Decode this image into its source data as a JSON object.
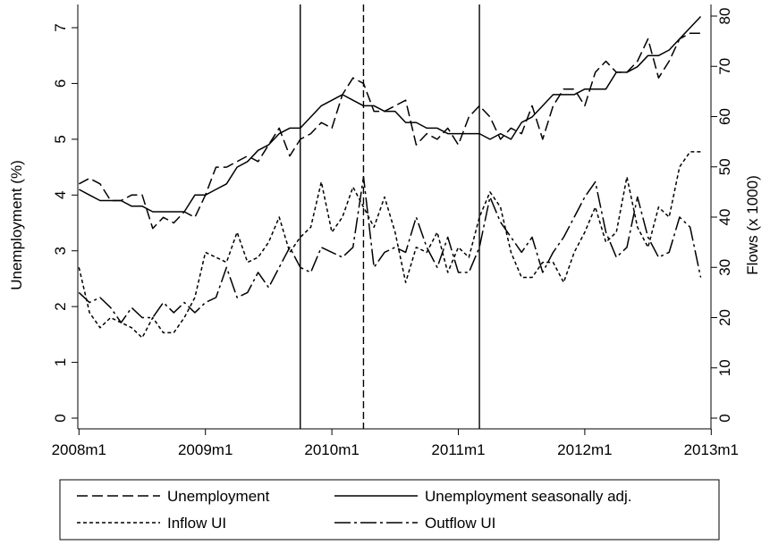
{
  "chart_data": {
    "type": "line",
    "xlim": [
      0,
      59
    ],
    "x_ticks": [
      {
        "x": 0,
        "label": "2008m1"
      },
      {
        "x": 12,
        "label": "2009m1"
      },
      {
        "x": 24,
        "label": "2010m1"
      },
      {
        "x": 36,
        "label": "2011m1"
      },
      {
        "x": 48,
        "label": "2012m1"
      },
      {
        "x": 60,
        "label": "2013m1"
      }
    ],
    "y_left": {
      "label": "Unemployment (%)",
      "lim": [
        0,
        7.4
      ],
      "ticks": [
        "0",
        "1",
        "2",
        "3",
        "4",
        "5",
        "6",
        "7"
      ]
    },
    "y_right": {
      "label": "Flows (x 1000)",
      "lim": [
        0,
        81.5
      ],
      "ticks": [
        "0",
        "10",
        "20",
        "30",
        "40",
        "50",
        "60",
        "70",
        "80"
      ]
    },
    "vlines": [
      {
        "x": 21,
        "style": "solid"
      },
      {
        "x": 27,
        "style": "dashed"
      },
      {
        "x": 38,
        "style": "solid"
      }
    ],
    "series": [
      {
        "name": "Unemployment",
        "axis": "left",
        "dash": "12 5",
        "values": [
          4.2,
          4.3,
          4.2,
          3.9,
          3.9,
          4.0,
          4.0,
          3.4,
          3.6,
          3.5,
          3.7,
          3.6,
          4.0,
          4.5,
          4.5,
          4.6,
          4.7,
          4.6,
          4.9,
          5.2,
          4.7,
          5.0,
          5.1,
          5.3,
          5.2,
          5.8,
          6.1,
          6.0,
          5.5,
          5.5,
          5.6,
          5.7,
          4.9,
          5.1,
          5.0,
          5.2,
          4.9,
          5.4,
          5.6,
          5.4,
          5.0,
          5.2,
          5.1,
          5.6,
          5.0,
          5.6,
          5.9,
          5.9,
          5.6,
          6.2,
          6.4,
          6.2,
          6.2,
          6.4,
          6.8,
          6.1,
          6.4,
          6.8,
          6.9,
          6.9
        ]
      },
      {
        "name": "Unemployment seasonally adj.",
        "axis": "left",
        "dash": "",
        "values": [
          4.1,
          4.0,
          3.9,
          3.9,
          3.9,
          3.8,
          3.8,
          3.7,
          3.7,
          3.7,
          3.7,
          4.0,
          4.0,
          4.1,
          4.2,
          4.5,
          4.6,
          4.8,
          4.9,
          5.1,
          5.2,
          5.2,
          5.4,
          5.6,
          5.7,
          5.8,
          5.7,
          5.6,
          5.6,
          5.5,
          5.5,
          5.3,
          5.3,
          5.2,
          5.2,
          5.1,
          5.1,
          5.1,
          5.1,
          5.0,
          5.1,
          5.0,
          5.3,
          5.4,
          5.6,
          5.8,
          5.8,
          5.8,
          5.9,
          5.9,
          5.9,
          6.2,
          6.2,
          6.3,
          6.5,
          6.5,
          6.6,
          6.8,
          7.0,
          7.2
        ]
      },
      {
        "name": "Inflow UI",
        "axis": "right",
        "dash": "4 3",
        "values": [
          30,
          21,
          18,
          20,
          19,
          18,
          16,
          20,
          17,
          17,
          20,
          24,
          33,
          32,
          31,
          37,
          31,
          32,
          35,
          40,
          33,
          36,
          38,
          47,
          37,
          40,
          46,
          42,
          38,
          44,
          37,
          27,
          34,
          33,
          37,
          29,
          34,
          32,
          40,
          45,
          42,
          33,
          28,
          28,
          31,
          31,
          27,
          33,
          37,
          42,
          35,
          37,
          48,
          38,
          34,
          42,
          40,
          50,
          53,
          53
        ]
      },
      {
        "name": "Outflow UI",
        "axis": "right",
        "dash": "18 4 3 4",
        "values": [
          25,
          23,
          24,
          22,
          19,
          22,
          20,
          20,
          23,
          21,
          23,
          21,
          23,
          24,
          30,
          24,
          25,
          29,
          26,
          30,
          34,
          30,
          29,
          34,
          33,
          32,
          34,
          48,
          30,
          33,
          34,
          33,
          40,
          34,
          30,
          36,
          29,
          29,
          34,
          44,
          39,
          36,
          33,
          36,
          29,
          33,
          36,
          40,
          44,
          47,
          37,
          32,
          34,
          44,
          36,
          32,
          33,
          40,
          38,
          28
        ]
      }
    ]
  }
}
